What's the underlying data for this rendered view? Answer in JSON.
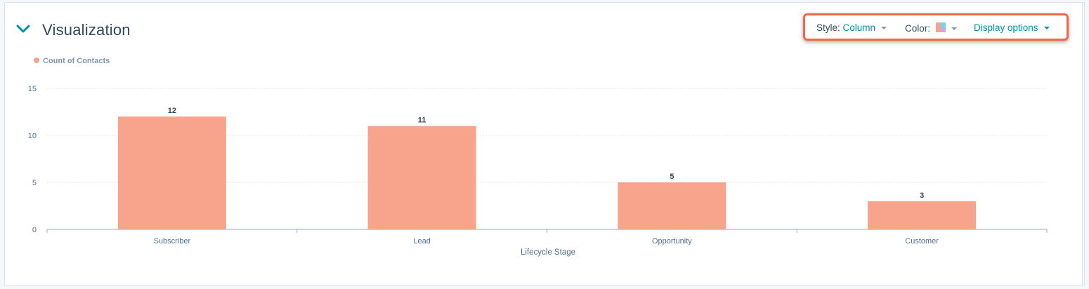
{
  "panel": {
    "title": "Visualization",
    "toggle_icon": "chevron-down-icon"
  },
  "toolbar": {
    "style_label": "Style:",
    "style_value": "Column",
    "color_label": "Color:",
    "color_icon": "color-swatch-icon",
    "display_options_label": "Display options"
  },
  "colors": {
    "bar": "#f8a38c",
    "accent": "#0091ae",
    "highlight_border": "#f0684a"
  },
  "chart_data": {
    "type": "bar",
    "legend": [
      "Count of Contacts"
    ],
    "categories": [
      "Subscriber",
      "Lead",
      "Opportunity",
      "Customer"
    ],
    "series": [
      {
        "name": "Count of Contacts",
        "values": [
          12,
          11,
          5,
          3
        ]
      }
    ],
    "data_labels": [
      "12",
      "11",
      "5",
      "3"
    ],
    "xlabel": "Lifecycle Stage",
    "ylabel": "",
    "ylim": [
      0,
      15
    ],
    "yticks": [
      0,
      5,
      10,
      15
    ],
    "grid": true,
    "legend_position": "top-left"
  }
}
